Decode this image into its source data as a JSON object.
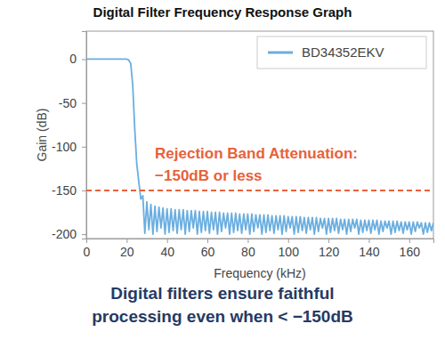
{
  "chart_data": {
    "type": "line",
    "title": "Digital Filter Frequency Response Graph",
    "x_label": "Frequency (kHz)",
    "y_label": "Gain (dB)",
    "xlim": [
      0,
      172
    ],
    "ylim": [
      -205,
      32
    ],
    "xticks": [
      0,
      20,
      40,
      60,
      80,
      100,
      120,
      140,
      160
    ],
    "yticks": [
      0,
      -50,
      -100,
      -150,
      -200
    ],
    "grid": false,
    "legend": "upper right",
    "x": [
      0,
      5,
      10,
      15,
      20,
      21,
      22,
      23,
      24,
      25,
      26,
      27,
      28,
      29,
      30,
      31,
      32,
      33,
      34,
      35,
      36,
      37,
      38,
      39,
      40,
      41,
      42,
      43,
      44,
      45,
      46,
      47,
      48,
      49,
      50,
      51,
      52,
      53,
      54,
      55,
      56,
      57,
      58,
      59,
      60,
      61,
      62,
      63,
      64,
      65,
      66,
      67,
      68,
      69,
      70,
      71,
      72,
      73,
      74,
      75,
      76,
      77,
      78,
      79,
      80,
      81,
      82,
      83,
      84,
      85,
      86,
      87,
      88,
      89,
      90,
      91,
      92,
      93,
      94,
      95,
      96,
      97,
      98,
      99,
      100,
      101,
      102,
      103,
      104,
      105,
      106,
      107,
      108,
      109,
      110,
      111,
      112,
      113,
      114,
      115,
      116,
      117,
      118,
      119,
      120,
      121,
      122,
      123,
      124,
      125,
      126,
      127,
      128,
      129,
      130,
      131,
      132,
      133,
      134,
      135,
      136,
      137,
      138,
      139,
      140,
      141,
      142,
      143,
      144,
      145,
      146,
      147,
      148,
      149,
      150,
      151,
      152,
      153,
      154,
      155,
      156,
      157,
      158,
      159,
      160,
      161,
      162,
      163,
      164,
      165,
      166,
      167,
      168,
      169,
      170,
      171,
      172
    ],
    "series": [
      {
        "name": "BD34352EKV",
        "color": "#6aaee0",
        "values": [
          0,
          0,
          0,
          0,
          0,
          -1,
          -5,
          -30,
          -80,
          -120,
          -140,
          -160,
          -156,
          -199,
          -163,
          -195,
          -166,
          -200,
          -168,
          -197,
          -169,
          -193,
          -170,
          -200,
          -171,
          -198,
          -171,
          -196,
          -172,
          -199,
          -172,
          -195,
          -172,
          -200,
          -173,
          -197,
          -173,
          -193,
          -173,
          -200,
          -174,
          -198,
          -174,
          -196,
          -174,
          -199,
          -175,
          -195,
          -175,
          -200,
          -175,
          -197,
          -176,
          -193,
          -176,
          -200,
          -176,
          -198,
          -176,
          -196,
          -177,
          -199,
          -177,
          -195,
          -177,
          -200,
          -177,
          -197,
          -178,
          -193,
          -178,
          -200,
          -178,
          -198,
          -178,
          -196,
          -179,
          -199,
          -179,
          -195,
          -179,
          -200,
          -179,
          -197,
          -180,
          -193,
          -180,
          -200,
          -180,
          -198,
          -180,
          -196,
          -181,
          -199,
          -181,
          -195,
          -181,
          -200,
          -181,
          -197,
          -182,
          -193,
          -182,
          -200,
          -182,
          -198,
          -182,
          -196,
          -182,
          -199,
          -183,
          -195,
          -183,
          -200,
          -183,
          -197,
          -183,
          -193,
          -183,
          -200,
          -184,
          -198,
          -184,
          -196,
          -184,
          -199,
          -184,
          -195,
          -184,
          -200,
          -185,
          -197,
          -185,
          -193,
          -185,
          -200,
          -185,
          -198,
          -185,
          -196,
          -186,
          -199,
          -186,
          -195,
          -186,
          -200,
          -186,
          -197,
          -186,
          -193,
          -187,
          -200,
          -187,
          -198,
          -187,
          -196,
          -187
        ]
      }
    ],
    "hline": {
      "value": -150,
      "color": "#e8613c",
      "line_style": "dashed"
    },
    "annotations": [
      {
        "text": "Rejection Band Attenuation:",
        "x": 34,
        "y": -113,
        "color": "#e8613c"
      },
      {
        "text": "−150dB or less",
        "x": 34,
        "y": -139,
        "color": "#e8613c"
      }
    ],
    "caption": [
      "Digital filters ensure faithful",
      "processing even when < −150dB"
    ]
  }
}
